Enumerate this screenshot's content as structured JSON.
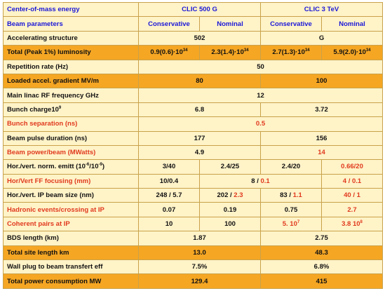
{
  "header": {
    "label": "Center-of-mass energy",
    "clic500": "CLIC 500 G",
    "clic3": "CLIC 3 TeV"
  },
  "beam_params": {
    "label": "Beam parameters",
    "cons1": "Conservative",
    "nom1": "Nominal",
    "cons2": "Conservative",
    "nom2": "Nominal"
  },
  "rows": {
    "accel_structure": {
      "label": "Accelerating structure",
      "v500": "502",
      "v3": "G"
    },
    "luminosity": {
      "label": "Total (Peak 1%) luminosity",
      "a": "0.9(0.6)·10",
      "a_exp": "34",
      "b": "2.3(1.4)·10",
      "b_exp": "34",
      "c": "2.7(1.3)·10",
      "c_exp": "34",
      "d": "5.9(2.0)·10",
      "d_exp": "34"
    },
    "rep_rate": {
      "label": "Repetition rate (Hz)",
      "value": "50"
    },
    "gradient": {
      "label": "Loaded accel. gradient MV/m",
      "v500": "80",
      "v3": "100"
    },
    "rf_freq": {
      "label": "Main linac RF frequency GHz",
      "value": "12"
    },
    "bunch_charge": {
      "label": "Bunch charge10",
      "label_exp": "9",
      "v500": "6.8",
      "v3": "3.72"
    },
    "bunch_sep": {
      "label": "Bunch separation (ns)",
      "value": "0.5"
    },
    "pulse_duration": {
      "label": "Beam pulse duration (ns)",
      "v500": "177",
      "v3": "156"
    },
    "beam_power": {
      "label": "Beam power/beam (MWatts)",
      "v500": "4.9",
      "v3": "14"
    },
    "emittance": {
      "label": "Hor./vert. norm. emitt (10",
      "label_exp1": "-6",
      "label_mid": "/10",
      "label_exp2": "-9",
      "label_end": ")",
      "a": "3/40",
      "b": "2.4/25",
      "c": "2.4/20",
      "d": "0.66/20"
    },
    "ff_focusing": {
      "label": "Hor/Vert FF focusing (mm)",
      "a": "10/0.4",
      "bc_black": "8 /",
      "bc_red": " 0.1",
      "d": "4 / 0.1"
    },
    "ip_size": {
      "label": "Hor./vert. IP beam size (nm)",
      "a": "248 / 5.7",
      "b_black": "202 /",
      "b_red": " 2.3",
      "c_black": "83 /",
      "c_red": " 1.1",
      "d": "40 / 1"
    },
    "hadronic": {
      "label": "Hadronic events/crossing at IP",
      "a": "0.07",
      "b": "0.19",
      "c": "0.75",
      "d": "2.7"
    },
    "coherent": {
      "label": "Coherent pairs at IP",
      "a": "10",
      "b": "100",
      "c": "5. 10",
      "c_exp": "7",
      "d": "3.8 10",
      "d_exp": "8"
    },
    "bds_length": {
      "label": "BDS length (km)",
      "v500": "1.87",
      "v3": "2.75"
    },
    "site_length": {
      "label": "Total site length km",
      "v500": "13.0",
      "v3": "48.3"
    },
    "wall_plug": {
      "label": "Wall plug to beam transfert eff",
      "v500": "7.5%",
      "v3": "6.8%"
    },
    "power": {
      "label": "Total power consumption MW",
      "v500": "129.4",
      "v3": "415"
    }
  },
  "colors": {
    "light_row": "#fff3c8",
    "dark_row": "#f5a623",
    "border": "#c8a24a",
    "blue_text": "#1a18d8",
    "red_text": "#e03a1e"
  }
}
